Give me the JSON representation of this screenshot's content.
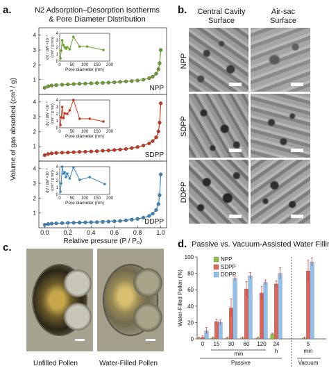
{
  "panel_labels": {
    "a": "a.",
    "b": "b.",
    "c": "c.",
    "d": "d."
  },
  "panel_a": {
    "title_line1": "N2 Adsorption–Desorption Isotherms",
    "title_line2": "& Pore Diameter Distribution",
    "ylabel": "Volume of gas absorbed (cm³ / g)",
    "xlabel": "Relative pressure (P / P₀)",
    "x_ticks": [
      "0.0",
      "0.2",
      "0.4",
      "0.6",
      "0.8",
      "1.0"
    ],
    "y_ticks": [
      "1",
      "2",
      "3",
      "4"
    ],
    "inset_ylabel_line1": "dV / dW ×10⁻³",
    "inset_ylabel_line2": "(cm³ / g nm)",
    "inset_xlabel": "Pore diameter (nm)",
    "inset_x_ticks": [
      "0",
      "50",
      "100",
      "150",
      "200"
    ],
    "inset_y_ticks": [
      "0",
      "1",
      "2",
      "3",
      "4"
    ]
  },
  "panel_b": {
    "col1_line1": "Central Cavity",
    "col1_line2": "Surface",
    "col2_line1": "Air-sac",
    "col2_line2": "Surface",
    "rows": [
      "NPP",
      "SDPP",
      "DDPP"
    ]
  },
  "panel_c": {
    "caption_left": "Unfilled Pollen",
    "caption_right": "Water-Filled Pollen"
  },
  "panel_d": {
    "title": "Passive vs. Vacuum-Assisted Water Filling",
    "ylabel": "Water-Filled Pollen (%)",
    "y_ticks": [
      "0",
      "20",
      "40",
      "60",
      "80",
      "100"
    ],
    "x_ticks": [
      "0",
      "15",
      "30",
      "60",
      "120",
      "24",
      "5"
    ],
    "x_unit_min": "min",
    "x_unit_h": "h",
    "group_passive": "Passive",
    "group_vacuum": "Vacuum",
    "x_unit_min2": "min"
  },
  "chart_data": [
    {
      "type": "line",
      "panel": "a-NPP",
      "xlabel": "Relative pressure (P / P₀)",
      "ylabel": "Volume of gas absorbed (cm³ / g)",
      "xlim": [
        -0.05,
        1.05
      ],
      "ylim": [
        0,
        4.5
      ],
      "series": [
        {
          "name": "NPP",
          "color": "#6aa02c",
          "x": [
            0.0,
            0.03,
            0.06,
            0.1,
            0.15,
            0.2,
            0.25,
            0.3,
            0.35,
            0.4,
            0.45,
            0.5,
            0.55,
            0.6,
            0.65,
            0.7,
            0.75,
            0.8,
            0.85,
            0.9,
            0.93,
            0.96,
            0.98,
            0.99,
            1.0
          ],
          "y": [
            0.45,
            0.55,
            0.6,
            0.63,
            0.66,
            0.68,
            0.7,
            0.72,
            0.73,
            0.75,
            0.77,
            0.78,
            0.8,
            0.82,
            0.85,
            0.88,
            0.9,
            0.94,
            1.0,
            1.1,
            1.2,
            1.4,
            1.7,
            2.1,
            3.0
          ]
        }
      ],
      "inset": {
        "xlim": [
          0,
          200
        ],
        "ylim": [
          0,
          4
        ],
        "color": "#6aa02c",
        "x": [
          3,
          6,
          10,
          15,
          20,
          25,
          30,
          40,
          55,
          80,
          110,
          175
        ],
        "y": [
          0.4,
          1.5,
          3.0,
          2.3,
          2.0,
          1.8,
          2.0,
          1.7,
          3.5,
          2.1,
          2.1,
          1.6
        ]
      }
    },
    {
      "type": "line",
      "panel": "a-SDPP",
      "xlim": [
        -0.05,
        1.05
      ],
      "ylim": [
        0,
        4.5
      ],
      "series": [
        {
          "name": "SDPP",
          "color": "#c8371f",
          "x": [
            0.0,
            0.03,
            0.06,
            0.1,
            0.15,
            0.2,
            0.25,
            0.3,
            0.35,
            0.4,
            0.45,
            0.5,
            0.55,
            0.6,
            0.65,
            0.7,
            0.75,
            0.8,
            0.85,
            0.9,
            0.93,
            0.96,
            0.98,
            0.99,
            1.0
          ],
          "y": [
            0.4,
            0.48,
            0.52,
            0.55,
            0.57,
            0.58,
            0.6,
            0.62,
            0.63,
            0.65,
            0.67,
            0.7,
            0.72,
            0.75,
            0.78,
            0.82,
            0.88,
            0.95,
            1.05,
            1.2,
            1.35,
            1.6,
            2.0,
            2.6,
            3.9
          ]
        }
      ],
      "inset": {
        "xlim": [
          0,
          200
        ],
        "ylim": [
          0,
          4
        ],
        "color": "#c8371f",
        "x": [
          3,
          6,
          10,
          15,
          20,
          30,
          40,
          55,
          80,
          120,
          175
        ],
        "y": [
          0.4,
          1.5,
          3.0,
          1.4,
          2.1,
          2.0,
          2.5,
          4.0,
          1.3,
          1.3,
          0.9
        ]
      }
    },
    {
      "type": "line",
      "panel": "a-DDPP",
      "xlim": [
        -0.05,
        1.05
      ],
      "ylim": [
        0,
        4.5
      ],
      "series": [
        {
          "name": "DDPP",
          "color": "#3a86c0",
          "x": [
            0.0,
            0.03,
            0.06,
            0.1,
            0.15,
            0.2,
            0.25,
            0.3,
            0.35,
            0.4,
            0.45,
            0.5,
            0.55,
            0.6,
            0.65,
            0.7,
            0.75,
            0.8,
            0.85,
            0.9,
            0.93,
            0.96,
            0.98,
            0.99,
            1.0
          ],
          "y": [
            0.2,
            0.25,
            0.28,
            0.3,
            0.32,
            0.33,
            0.34,
            0.35,
            0.36,
            0.37,
            0.38,
            0.4,
            0.42,
            0.44,
            0.46,
            0.5,
            0.55,
            0.6,
            0.68,
            0.8,
            0.95,
            1.2,
            1.6,
            2.2,
            3.6
          ]
        }
      ],
      "inset": {
        "xlim": [
          0,
          200
        ],
        "ylim": [
          0,
          4
        ],
        "color": "#3a86c0",
        "x": [
          3,
          6,
          10,
          15,
          20,
          25,
          30,
          40,
          55,
          80,
          120,
          180
        ],
        "y": [
          0.4,
          1.6,
          4.0,
          3.0,
          3.2,
          2.5,
          3.0,
          2.3,
          3.9,
          2.1,
          2.5,
          1.5
        ]
      }
    },
    {
      "type": "bar",
      "panel": "d",
      "title": "Passive vs. Vacuum-Assisted Water Filling",
      "ylabel": "Water-Filled Pollen (%)",
      "ylim": [
        0,
        100
      ],
      "categories": [
        "0 min",
        "15 min",
        "30 min",
        "60 min",
        "120 min",
        "24 h",
        "5 min Vacuum"
      ],
      "series": [
        {
          "name": "NPP",
          "color": "#8fbf44",
          "values": [
            1,
            1,
            1,
            1,
            1,
            6,
            1
          ],
          "errors": [
            1,
            1,
            1,
            1,
            1,
            1,
            1
          ]
        },
        {
          "name": "SDPP",
          "color": "#e0665a",
          "values": [
            2,
            21,
            38,
            61,
            56,
            67,
            83
          ],
          "errors": [
            2,
            3,
            11,
            9,
            8,
            4,
            13
          ]
        },
        {
          "name": "DDPP",
          "color": "#8fc0ee",
          "values": [
            10,
            20,
            74,
            77,
            69,
            80,
            94
          ],
          "errors": [
            4,
            3,
            3,
            4,
            3,
            7,
            5
          ]
        }
      ]
    }
  ]
}
